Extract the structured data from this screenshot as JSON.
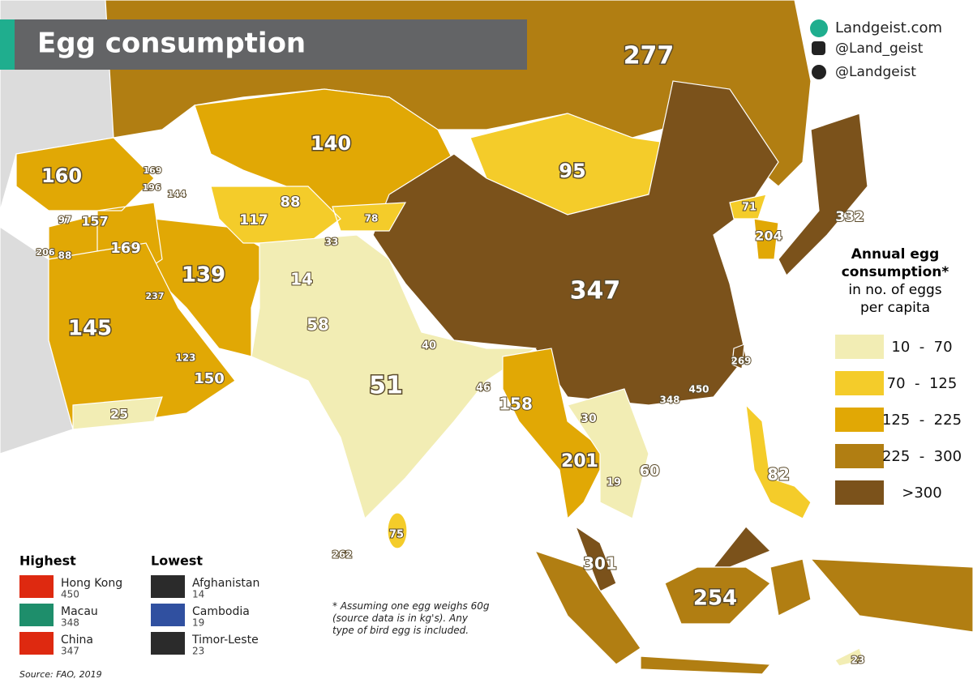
{
  "header": {
    "title": "Egg consumption"
  },
  "social": [
    "Landgeist.com",
    "@Land_geist",
    "@Landgeist"
  ],
  "legend": {
    "title": "Annual egg consumption*",
    "subtitle": "in no. of eggs per capita",
    "classes": [
      {
        "label": "10  -  70",
        "color": "#f2edb4"
      },
      {
        "label": "70  -  125",
        "color": "#f4cc2a"
      },
      {
        "label": "125  -  225",
        "color": "#e1a805"
      },
      {
        "label": "225  -  300",
        "color": "#b17e12"
      },
      {
        "label": ">300",
        "color": "#7b521b"
      }
    ]
  },
  "map": {
    "labels": [
      277,
      140,
      95,
      160,
      169,
      196,
      144,
      88,
      117,
      78,
      33,
      71,
      204,
      332,
      97,
      157,
      206,
      88,
      169,
      14,
      139,
      237,
      347,
      145,
      58,
      40,
      269,
      123,
      51,
      46,
      450,
      348,
      150,
      158,
      30,
      25,
      201,
      60,
      19,
      82,
      75,
      262,
      301,
      254,
      23
    ]
  },
  "highest": {
    "title": "Highest",
    "items": [
      {
        "name": "Hong Kong",
        "value": 450
      },
      {
        "name": "Macau",
        "value": 348
      },
      {
        "name": "China",
        "value": 347
      }
    ]
  },
  "lowest": {
    "title": "Lowest",
    "items": [
      {
        "name": "Afghanistan",
        "value": 14
      },
      {
        "name": "Cambodia",
        "value": 19
      },
      {
        "name": "Timor-Leste",
        "value": 23
      }
    ]
  },
  "footnote": "* Assuming one egg weighs 60g (source data is in kg's). Any type of bird egg is included.",
  "source": "Source: FAO, 2019"
}
